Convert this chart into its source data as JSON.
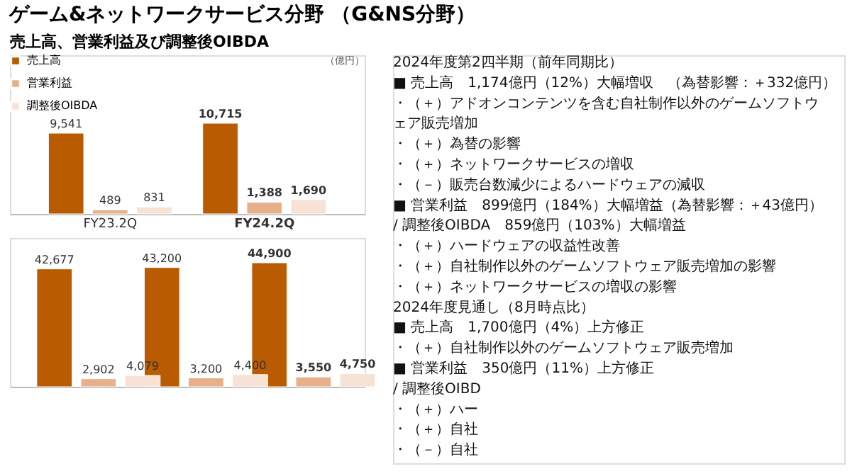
{
  "chart_data": [
    {
      "type": "bar",
      "title": "ゲーム&ネットワークサービス分野 （G&NS分野）",
      "subtitle": "売上高、営業利益及び調整後OIBDA",
      "categories": [
        "FY23.2Q",
        "FY24.2Q"
      ],
      "series": [
        {
          "name": "売上高",
          "color": "#b95b00",
          "values": [
            9541,
            10715
          ],
          "value_labels": [
            "9,541",
            "10,715"
          ]
        },
        {
          "name": "営業利益",
          "color": "#e8b08a",
          "values": [
            489,
            1388
          ],
          "value_labels": [
            "489",
            "1,388"
          ]
        },
        {
          "name": "調整後OIBDA",
          "color": "#f8e2d6",
          "values": [
            831,
            1690
          ],
          "value_labels": [
            "831",
            "1,690"
          ]
        }
      ],
      "legend": "top left",
      "grid": false,
      "annotations": [
        "（億円）"
      ]
    },
    {
      "type": "bar",
      "categories": [
        null,
        null,
        null
      ],
      "series": [
        {
          "name": "売上高",
          "color": "#b95b00",
          "values": [
            42677,
            43200,
            44900
          ],
          "value_labels": [
            "42,677",
            "43,200",
            "44,900"
          ]
        },
        {
          "name": "営業利益",
          "color": "#e8b08a",
          "values": [
            2902,
            3200,
            3550
          ],
          "value_labels": [
            "2,902",
            "3,200",
            "3,550"
          ]
        },
        {
          "name": "調整後OIBDA",
          "color": "#f8e2d6",
          "values": [
            4079,
            4400,
            4750
          ],
          "value_labels": [
            "4,079",
            "4,400",
            "4,750"
          ]
        }
      ],
      "legend": false,
      "grid": false
    },
    {
      "type": "other",
      "annotations": [
        "2024年度第2四半期（前年同期比）",
        "■ 売上高　1,174億円（12%）大幅増収　（為替影響：＋332億円）",
        "　・（＋）アドオンコンテンツを含む自社制作以外のゲームソフトウェア販売増加",
        "　・（＋）為替の影響",
        "　・（＋）ネットワークサービスの増収",
        "　・（－）販売台数減少によるハードウェアの減収",
        "■ 営業利益　899億円（184%）大幅増益（為替影響：＋43億円）",
        "　/ 調整後OIBDA　859億円（103%）大幅増益",
        "　・（＋）ハードウェアの収益性改善",
        "　・（＋）自社制作以外のゲームソフトウェア販売増加の影響",
        "　・（＋）ネットワークサービスの増収の影響",
        "2024年度見通し（8月時点比）",
        "■ 売上高　1,700億円（4%）上方修正",
        "　・（＋）自社制作以外のゲームソフトウェア販売増加",
        "■ 営業利益　350億円（11%）上方修正",
        "　/ 調整後OIBD",
        "　・（＋）ハー",
        "　・（＋）自社",
        "　・（－）自社"
      ]
    }
  ]
}
